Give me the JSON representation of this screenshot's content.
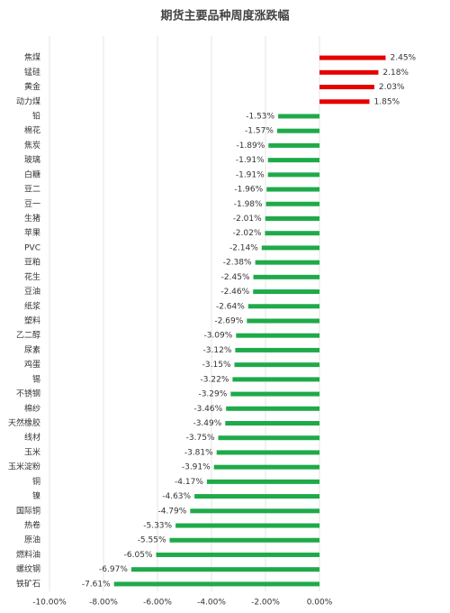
{
  "chart_data": {
    "type": "bar",
    "orientation": "horizontal",
    "title": "期货主要品种周度涨跌幅",
    "categories": [
      "焦煤",
      "锰硅",
      "黄金",
      "动力煤",
      "铅",
      "棉花",
      "焦炭",
      "玻璃",
      "白糖",
      "豆二",
      "豆一",
      "生猪",
      "苹果",
      "PVC",
      "豆粕",
      "花生",
      "豆油",
      "纸浆",
      "塑料",
      "乙二醇",
      "尿素",
      "鸡蛋",
      "锡",
      "不锈钢",
      "棉纱",
      "天然橡胶",
      "线材",
      "玉米",
      "玉米淀粉",
      "铜",
      "镍",
      "国际铜",
      "热卷",
      "原油",
      "燃料油",
      "螺纹钢",
      "铁矿石"
    ],
    "values": [
      2.45,
      2.18,
      2.03,
      1.85,
      -1.53,
      -1.57,
      -1.89,
      -1.91,
      -1.91,
      -1.96,
      -1.98,
      -2.01,
      -2.02,
      -2.14,
      -2.38,
      -2.45,
      -2.46,
      -2.64,
      -2.69,
      -3.09,
      -3.12,
      -3.15,
      -3.22,
      -3.29,
      -3.46,
      -3.49,
      -3.75,
      -3.81,
      -3.91,
      -4.17,
      -4.63,
      -4.79,
      -5.33,
      -5.55,
      -6.05,
      -6.97,
      -7.61
    ],
    "value_labels": [
      "2.45%",
      "2.18%",
      "2.03%",
      "1.85%",
      "-1.53%",
      "-1.57%",
      "-1.89%",
      "-1.91%",
      "-1.91%",
      "-1.96%",
      "-1.98%",
      "-2.01%",
      "-2.02%",
      "-2.14%",
      "-2.38%",
      "-2.45%",
      "-2.46%",
      "-2.64%",
      "-2.69%",
      "-3.09%",
      "-3.12%",
      "-3.15%",
      "-3.22%",
      "-3.29%",
      "-3.46%",
      "-3.49%",
      "-3.75%",
      "-3.81%",
      "-3.91%",
      "-4.17%",
      "-4.63%",
      "-4.79%",
      "-5.33%",
      "-5.55%",
      "-6.05%",
      "-6.97%",
      "-7.61%"
    ],
    "color_positive": "#e60000",
    "color_negative": "#1faa4a",
    "xlim": [
      -10,
      4
    ],
    "xticks": [
      {
        "value": -10,
        "label": "-10.00%"
      },
      {
        "value": -8,
        "label": "-8.00%"
      },
      {
        "value": -6,
        "label": "-6.00%"
      },
      {
        "value": -4,
        "label": "-4.00%"
      },
      {
        "value": -2,
        "label": "-2.00%"
      },
      {
        "value": 0,
        "label": "0.00%"
      }
    ],
    "grid": true
  }
}
